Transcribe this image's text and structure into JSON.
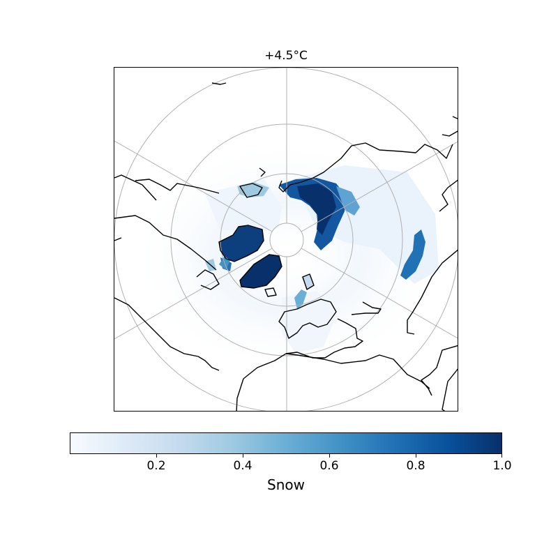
{
  "map": {
    "title": "+4.5°C",
    "projection": "north-polar-stereographic",
    "graticule": true,
    "colormap": "Blues",
    "colors": {
      "coast": "#000000",
      "grid": "#b0b0b0",
      "snow_low": "#f7fbff",
      "snow_mid": "#6baed6",
      "snow_high": "#08306b"
    }
  },
  "colorbar": {
    "label": "Snow",
    "range": [
      0,
      1.0
    ],
    "ticks": [
      {
        "value": 0.2,
        "label": "0.2"
      },
      {
        "value": 0.4,
        "label": "0.4"
      },
      {
        "value": 0.6,
        "label": "0.6"
      },
      {
        "value": 0.8,
        "label": "0.8"
      },
      {
        "value": 1.0,
        "label": "1.0"
      }
    ]
  }
}
